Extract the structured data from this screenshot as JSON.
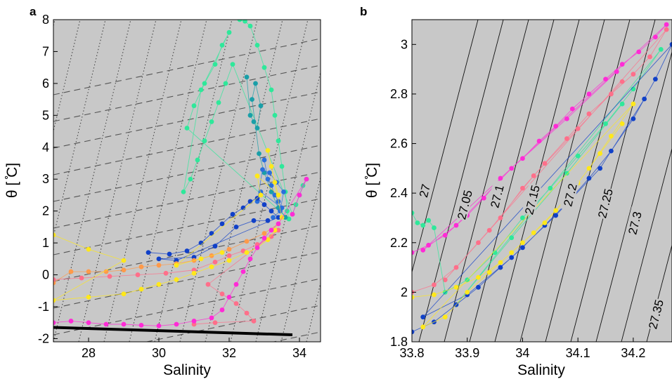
{
  "chart_data": [
    {
      "panel": "a",
      "type": "scatter",
      "xlabel": "Salinity",
      "ylabel": "θ [ ̊C]",
      "xlim": [
        27,
        34.6
      ],
      "ylim": [
        -2.1,
        8
      ],
      "xticks": [
        "28",
        "30",
        "32",
        "34"
      ],
      "yticks": [
        "-2",
        "-1",
        "0",
        "1",
        "2",
        "3",
        "4",
        "5",
        "6",
        "7",
        "8"
      ],
      "grid": false,
      "background": "#c8c8c8",
      "freezing_line": {
        "x": [
          27,
          33.8
        ],
        "y": [
          -1.65,
          -1.88
        ],
        "color": "#000000"
      },
      "series": [
        {
          "color": "#2ee89a",
          "points": [
            [
              32.3,
              8.0
            ],
            [
              32.45,
              7.95
            ],
            [
              32.6,
              7.8
            ],
            [
              32.8,
              7.2
            ],
            [
              33.0,
              6.5
            ],
            [
              33.2,
              5.8
            ],
            [
              33.3,
              5.0
            ],
            [
              33.4,
              4.2
            ],
            [
              33.5,
              3.4
            ],
            [
              33.6,
              2.6
            ],
            [
              33.65,
              2.0
            ],
            [
              33.7,
              1.75
            ],
            [
              30.8,
              4.6
            ],
            [
              31.0,
              5.3
            ],
            [
              31.3,
              6.0
            ],
            [
              31.6,
              6.6
            ],
            [
              31.8,
              7.2
            ],
            [
              32.0,
              7.6
            ],
            [
              31.2,
              5.8
            ],
            [
              30.7,
              2.6
            ],
            [
              30.9,
              3.0
            ],
            [
              31.1,
              3.6
            ],
            [
              31.3,
              4.2
            ],
            [
              31.5,
              4.8
            ],
            [
              31.7,
              5.4
            ],
            [
              31.9,
              6.0
            ],
            [
              32.1,
              6.6
            ],
            [
              33.8,
              1.9
            ],
            [
              33.9,
              2.2
            ],
            [
              34.0,
              2.5
            ],
            [
              34.1,
              2.8
            ],
            [
              34.2,
              3.0
            ]
          ]
        },
        {
          "color": "#1a9fa8",
          "points": [
            [
              32.5,
              6.2
            ],
            [
              32.6,
              5.0
            ],
            [
              32.7,
              4.8
            ],
            [
              32.8,
              4.6
            ],
            [
              32.9,
              5.3
            ],
            [
              32.75,
              6.0
            ],
            [
              32.65,
              5.5
            ],
            [
              32.85,
              3.8
            ],
            [
              33.0,
              3.2
            ],
            [
              33.2,
              2.6
            ],
            [
              33.4,
              2.1
            ],
            [
              33.6,
              1.8
            ]
          ]
        },
        {
          "color": "#2a6fdc",
          "points": [
            [
              33.0,
              3.6
            ],
            [
              33.1,
              3.0
            ],
            [
              33.2,
              2.8
            ],
            [
              33.3,
              2.5
            ],
            [
              33.4,
              2.3
            ],
            [
              33.5,
              2.1
            ],
            [
              32.9,
              2.6
            ],
            [
              32.8,
              2.3
            ],
            [
              32.95,
              3.3
            ],
            [
              33.15,
              3.2
            ],
            [
              33.35,
              2.9
            ],
            [
              33.55,
              2.6
            ],
            [
              33.45,
              2.0
            ],
            [
              33.25,
              1.8
            ]
          ]
        },
        {
          "color": "#1040c8",
          "points": [
            [
              29.7,
              0.7
            ],
            [
              30.3,
              0.65
            ],
            [
              30.8,
              0.75
            ],
            [
              31.2,
              1.0
            ],
            [
              31.5,
              1.3
            ],
            [
              31.8,
              1.6
            ],
            [
              32.1,
              1.9
            ],
            [
              32.4,
              2.1
            ],
            [
              32.6,
              2.3
            ],
            [
              32.8,
              2.4
            ],
            [
              33.0,
              2.2
            ],
            [
              33.2,
              2.0
            ],
            [
              33.4,
              1.8
            ],
            [
              30.5,
              0.45
            ],
            [
              30.0,
              0.5
            ],
            [
              31.0,
              0.55
            ],
            [
              31.6,
              0.9
            ],
            [
              32.2,
              1.5
            ],
            [
              32.7,
              1.7
            ],
            [
              33.1,
              1.7
            ]
          ]
        },
        {
          "color": "#ff9a4a",
          "points": [
            [
              27.0,
              -0.25
            ],
            [
              27.5,
              0.1
            ],
            [
              28.0,
              0.1
            ],
            [
              28.5,
              0.1
            ],
            [
              29.0,
              0.15
            ],
            [
              29.5,
              0.25
            ],
            [
              30.0,
              0.3
            ],
            [
              30.5,
              0.35
            ],
            [
              31.0,
              0.45
            ],
            [
              31.5,
              0.6
            ],
            [
              32.0,
              0.8
            ],
            [
              32.5,
              1.05
            ],
            [
              33.0,
              1.3
            ],
            [
              33.4,
              1.6
            ]
          ]
        },
        {
          "color": "#ff6f8a",
          "points": [
            [
              27.0,
              -0.15
            ],
            [
              27.8,
              -0.1
            ],
            [
              28.6,
              -0.05
            ],
            [
              29.4,
              0.0
            ],
            [
              30.2,
              0.05
            ],
            [
              31.0,
              0.15
            ],
            [
              31.6,
              0.4
            ],
            [
              32.0,
              0.6
            ],
            [
              32.4,
              0.75
            ],
            [
              32.8,
              0.95
            ],
            [
              33.2,
              1.2
            ],
            [
              33.4,
              1.4
            ],
            [
              31.4,
              -0.3
            ],
            [
              31.8,
              -0.6
            ],
            [
              32.2,
              -0.9
            ],
            [
              32.5,
              -1.2
            ],
            [
              32.7,
              -1.45
            ],
            [
              31.6,
              -1.5
            ],
            [
              31.0,
              -1.55
            ]
          ]
        },
        {
          "color": "#ffe81a",
          "points": [
            [
              27.0,
              1.25
            ],
            [
              28.0,
              0.8
            ],
            [
              29.0,
              0.45
            ],
            [
              27.0,
              -0.8
            ],
            [
              28.0,
              -0.7
            ],
            [
              29.0,
              -0.6
            ],
            [
              29.5,
              -0.45
            ],
            [
              30.0,
              -0.3
            ],
            [
              30.5,
              -0.15
            ],
            [
              31.0,
              0.05
            ],
            [
              31.5,
              0.25
            ],
            [
              32.0,
              0.45
            ],
            [
              32.5,
              0.7
            ],
            [
              32.8,
              0.85
            ],
            [
              33.1,
              1.1
            ],
            [
              33.3,
              1.4
            ],
            [
              33.5,
              1.8
            ],
            [
              33.1,
              3.9
            ],
            [
              33.2,
              3.4
            ],
            [
              33.3,
              2.9
            ],
            [
              33.4,
              2.5
            ],
            [
              32.8,
              3.1
            ],
            [
              32.9,
              2.5
            ],
            [
              30.5,
              0.3
            ],
            [
              31.2,
              0.5
            ],
            [
              31.8,
              0.7
            ]
          ]
        },
        {
          "color": "#ff2bd6",
          "points": [
            [
              27.0,
              -1.5
            ],
            [
              27.5,
              -1.45
            ],
            [
              28.0,
              -1.5
            ],
            [
              28.5,
              -1.55
            ],
            [
              29.0,
              -1.55
            ],
            [
              29.5,
              -1.58
            ],
            [
              30.0,
              -1.6
            ],
            [
              30.5,
              -1.55
            ],
            [
              31.0,
              -1.45
            ],
            [
              31.5,
              -1.35
            ],
            [
              31.8,
              -1.1
            ],
            [
              32.0,
              -0.7
            ],
            [
              32.2,
              -0.3
            ],
            [
              32.4,
              0.1
            ],
            [
              32.6,
              0.5
            ],
            [
              32.8,
              0.85
            ],
            [
              33.0,
              1.15
            ],
            [
              33.2,
              1.4
            ],
            [
              33.4,
              1.6
            ],
            [
              34.2,
              3.0
            ],
            [
              34.0,
              2.5
            ],
            [
              33.8,
              1.9
            ]
          ]
        }
      ]
    },
    {
      "panel": "b",
      "type": "scatter",
      "xlabel": "Salinity",
      "ylabel": "θ [ ̊C]",
      "xlim": [
        33.8,
        34.27
      ],
      "ylim": [
        1.8,
        3.1
      ],
      "xticks": [
        "33.8",
        "33.9",
        "34",
        "34.1",
        "34.2"
      ],
      "yticks": [
        "1.8",
        "2",
        "2.2",
        "2.4",
        "2.6",
        "2.8",
        "3"
      ],
      "grid": false,
      "background": "#c8c8c8",
      "isopycnal_labels": [
        "27",
        "27.05",
        "27.1",
        "27.15",
        "27.2",
        "27.25",
        "27.3",
        "27.35"
      ],
      "series": [
        {
          "color": "#ff2bd6",
          "points": [
            [
              33.8,
              2.16
            ],
            [
              33.83,
              2.19
            ],
            [
              33.86,
              2.23
            ],
            [
              33.9,
              2.31
            ],
            [
              33.93,
              2.38
            ],
            [
              33.96,
              2.46
            ],
            [
              34.0,
              2.54
            ],
            [
              34.03,
              2.61
            ],
            [
              34.06,
              2.67
            ],
            [
              34.09,
              2.74
            ],
            [
              34.12,
              2.8
            ],
            [
              34.15,
              2.86
            ],
            [
              34.18,
              2.92
            ],
            [
              34.21,
              2.97
            ],
            [
              34.24,
              3.03
            ],
            [
              34.26,
              3.08
            ],
            [
              33.82,
              2.17
            ],
            [
              33.88,
              2.27
            ],
            [
              33.98,
              2.5
            ],
            [
              34.08,
              2.7
            ],
            [
              34.17,
              2.89
            ]
          ]
        },
        {
          "color": "#ff6f8a",
          "points": [
            [
              33.8,
              2.0
            ],
            [
              33.84,
              2.03
            ],
            [
              33.88,
              2.1
            ],
            [
              33.92,
              2.2
            ],
            [
              33.96,
              2.3
            ],
            [
              34.0,
              2.42
            ],
            [
              34.04,
              2.52
            ],
            [
              34.08,
              2.62
            ],
            [
              34.12,
              2.72
            ],
            [
              34.16,
              2.8
            ],
            [
              34.2,
              2.88
            ],
            [
              34.23,
              2.95
            ],
            [
              34.26,
              3.06
            ],
            [
              33.86,
              2.05
            ],
            [
              33.94,
              2.25
            ],
            [
              34.02,
              2.47
            ],
            [
              34.1,
              2.66
            ],
            [
              34.18,
              2.85
            ]
          ]
        },
        {
          "color": "#2ee89a",
          "points": [
            [
              33.8,
              2.32
            ],
            [
              33.81,
              2.28
            ],
            [
              33.82,
              2.27
            ],
            [
              33.83,
              2.29
            ],
            [
              33.84,
              2.26
            ],
            [
              33.86,
              2.0
            ],
            [
              33.9,
              2.05
            ],
            [
              33.95,
              2.16
            ],
            [
              34.0,
              2.3
            ],
            [
              34.05,
              2.42
            ],
            [
              34.1,
              2.55
            ],
            [
              34.15,
              2.68
            ],
            [
              34.2,
              2.82
            ],
            [
              34.25,
              2.98
            ],
            [
              33.88,
              1.95
            ],
            [
              33.98,
              2.22
            ],
            [
              34.08,
              2.48
            ],
            [
              34.18,
              2.76
            ]
          ]
        },
        {
          "color": "#1040c8",
          "points": [
            [
              33.8,
              1.84
            ],
            [
              33.84,
              1.88
            ],
            [
              33.88,
              1.95
            ],
            [
              33.92,
              2.02
            ],
            [
              33.96,
              2.1
            ],
            [
              34.0,
              2.18
            ],
            [
              34.04,
              2.27
            ],
            [
              34.08,
              2.36
            ],
            [
              34.12,
              2.46
            ],
            [
              34.16,
              2.57
            ],
            [
              34.2,
              2.7
            ],
            [
              34.24,
              2.86
            ],
            [
              34.27,
              3.0
            ],
            [
              33.82,
              1.9
            ],
            [
              33.9,
              1.99
            ],
            [
              33.98,
              2.14
            ],
            [
              34.06,
              2.31
            ],
            [
              34.14,
              2.5
            ],
            [
              34.22,
              2.78
            ]
          ]
        },
        {
          "color": "#ffe81a",
          "points": [
            [
              33.8,
              1.98
            ],
            [
              33.84,
              1.99
            ],
            [
              33.88,
              2.02
            ],
            [
              33.92,
              2.06
            ],
            [
              33.96,
              2.12
            ],
            [
              34.0,
              2.2
            ],
            [
              34.04,
              2.28
            ],
            [
              34.08,
              2.38
            ],
            [
              34.12,
              2.5
            ],
            [
              34.16,
              2.63
            ],
            [
              34.2,
              2.76
            ],
            [
              33.82,
              1.86
            ],
            [
              33.86,
              1.9
            ],
            [
              33.9,
              2.0
            ],
            [
              33.94,
              2.08
            ],
            [
              33.98,
              2.16
            ],
            [
              34.02,
              2.24
            ],
            [
              34.06,
              2.33
            ],
            [
              34.1,
              2.44
            ],
            [
              34.14,
              2.56
            ],
            [
              34.18,
              2.68
            ]
          ]
        }
      ]
    }
  ]
}
